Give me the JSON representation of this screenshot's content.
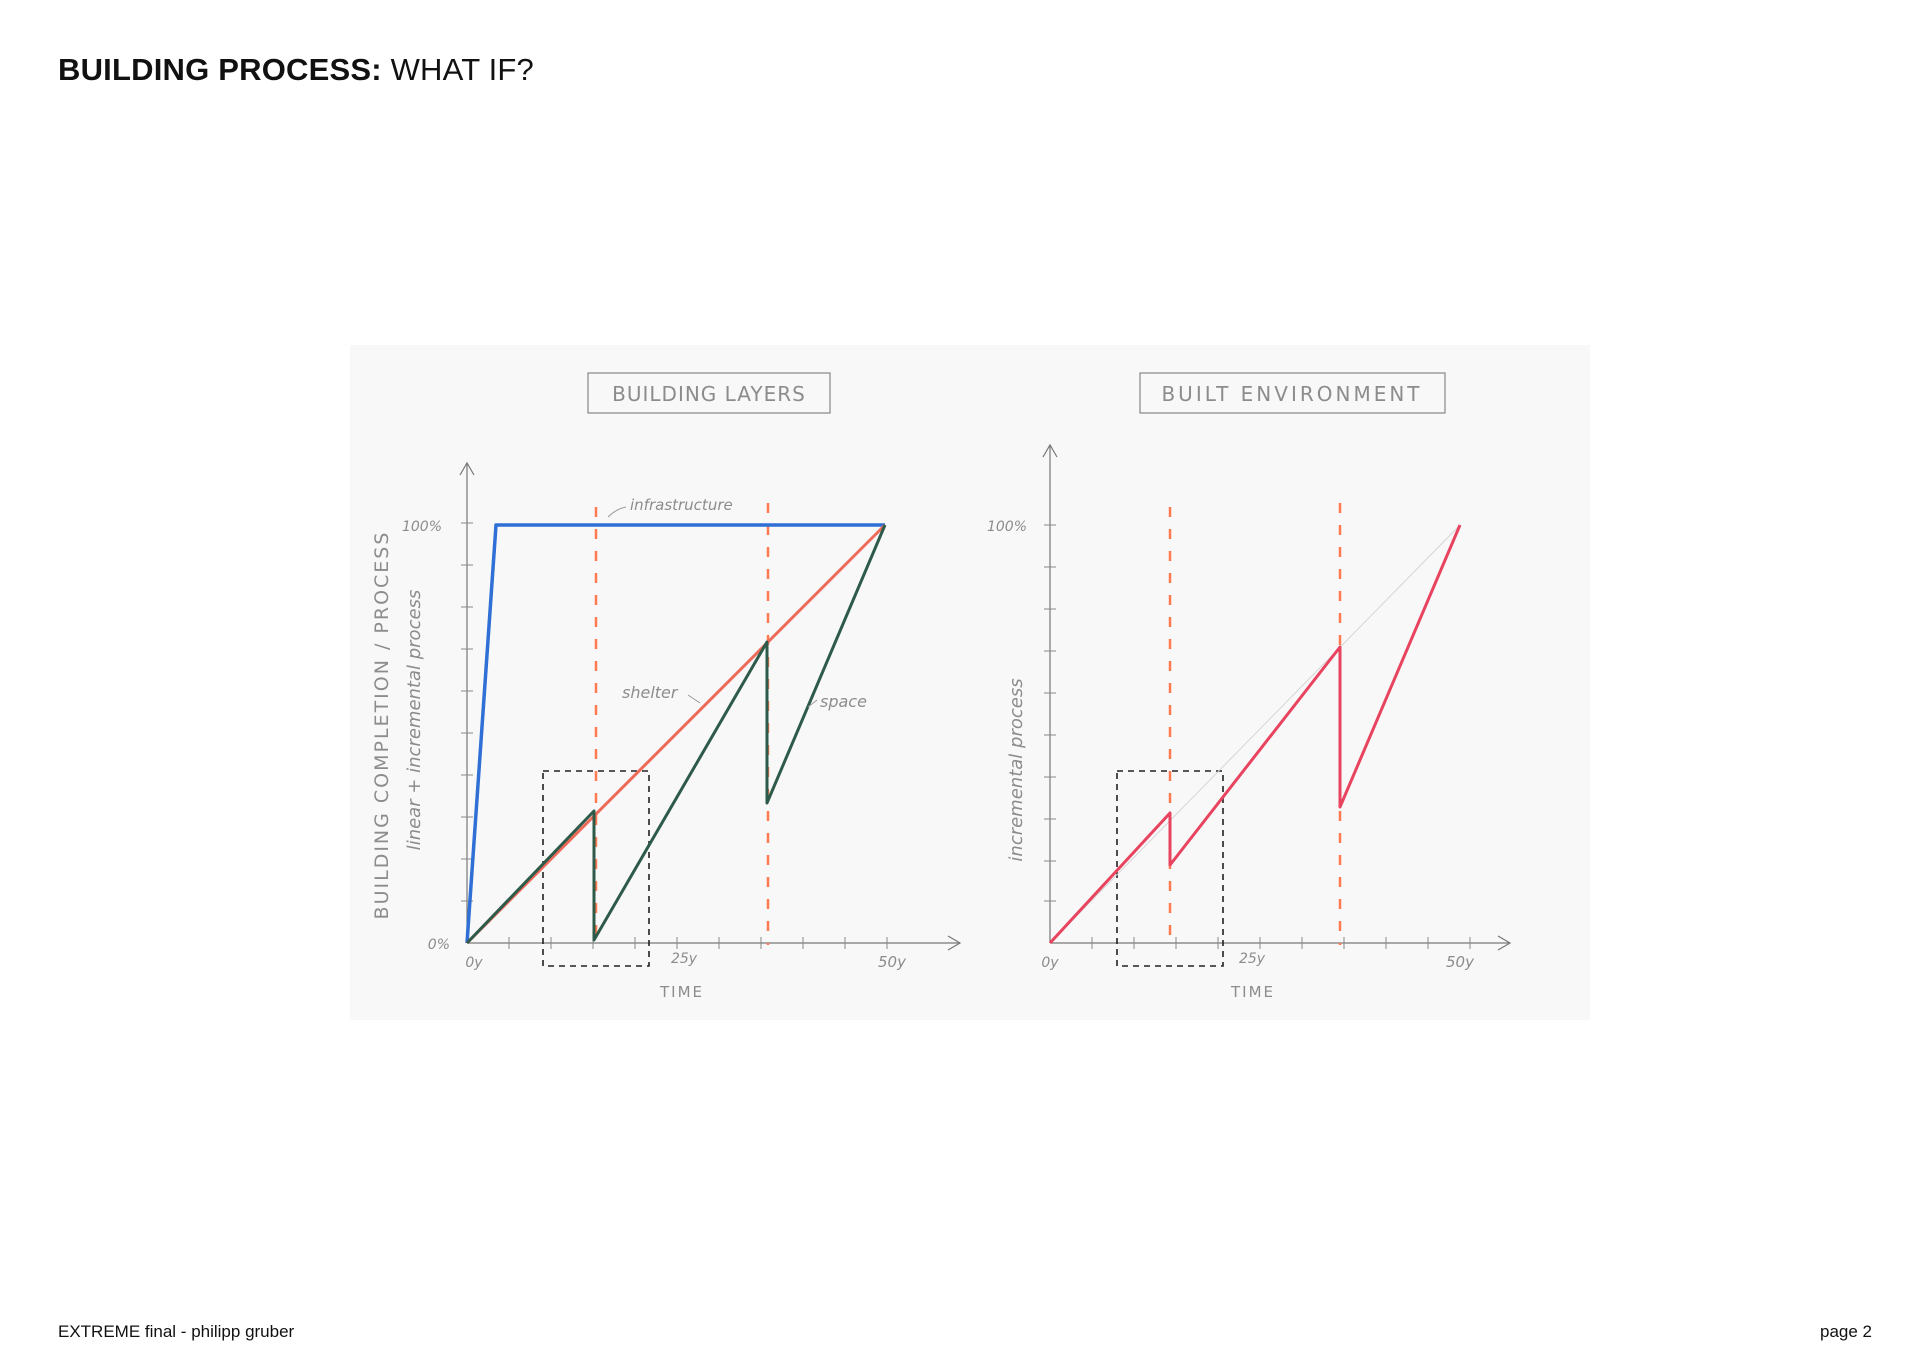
{
  "header": {
    "title_strong": "BUILDING PROCESS",
    "title_sep": ": ",
    "title_rest": "WHAT IF?"
  },
  "sketch": {
    "left_panel": {
      "title": "BUILDING LAYERS",
      "y_label_top": "BUILDING COMPLETION / PROCESS",
      "y_label_sub": "linear + incremental process",
      "y_tick_100": "100%",
      "y_tick_0": "0%",
      "x_tick_0": "0y",
      "x_tick_25": "25y",
      "x_tick_50": "50y",
      "x_label": "TIME",
      "annotation_infrastructure": "infrastructure",
      "annotation_shelter": "shelter",
      "annotation_space": "space"
    },
    "right_panel": {
      "title": "BUILT ENVIRONMENT",
      "y_label": "incremental process",
      "y_tick_100": "100%",
      "x_tick_0": "0y",
      "x_tick_25": "25y",
      "x_tick_50": "50y",
      "x_label": "TIME"
    },
    "colors": {
      "infrastructure": "#2f6fd6",
      "linear": "#ee6a5a",
      "space": "#2e5a4a",
      "incremental": "#e8435f",
      "marker": "#ff7a50",
      "pencil": "#7a7a7a"
    }
  },
  "footer": {
    "left": "EXTREME final - philipp gruber",
    "right": "page 2"
  }
}
